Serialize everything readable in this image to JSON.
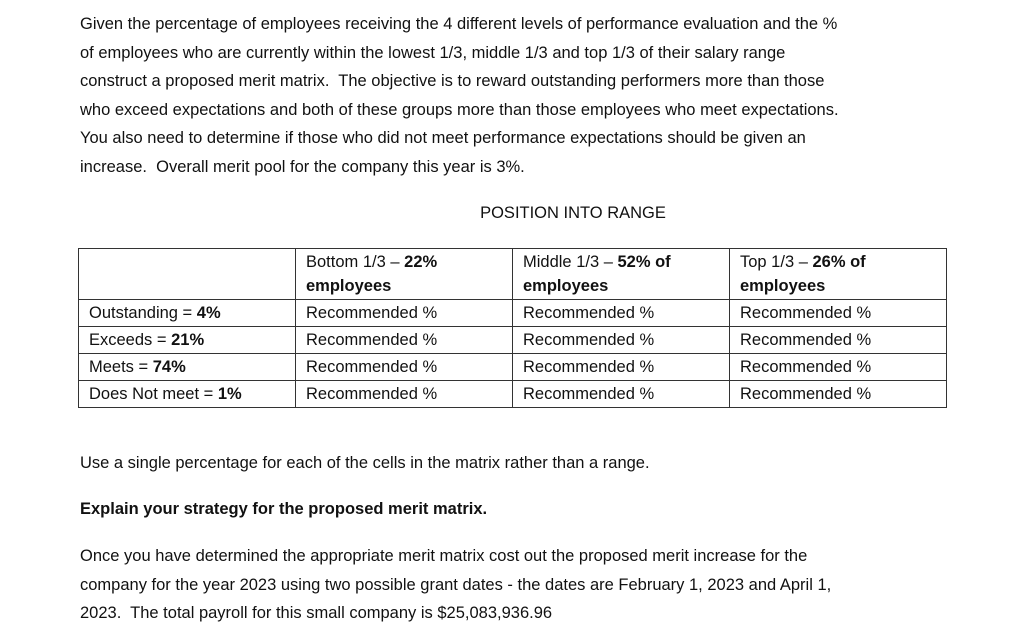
{
  "intro": {
    "lines": [
      "Given the percentage of employees receiving the 4 different levels of performance evaluation and the %",
      "of employees who are currently within the lowest 1/3, middle 1/3 and top 1/3 of their salary range",
      "construct a proposed merit matrix.  The objective is to reward outstanding performers more than those",
      "who exceed expectations and both of these groups more than those employees who meet expectations.",
      "You also need to determine if those who did not meet performance expectations should be given an",
      "increase.  Overall merit pool for the company this year is 3%."
    ]
  },
  "table_caption": "POSITION INTO RANGE",
  "table": {
    "column_headers": [
      {
        "text": "Bottom 1/3 – ",
        "bold": "22% employees"
      },
      {
        "text": "Middle 1/3 – ",
        "bold": "52% of employees"
      },
      {
        "text": "Top 1/3 – ",
        "bold": "26% of employees"
      }
    ],
    "rows": [
      {
        "label": {
          "text": "Outstanding = ",
          "bold": "4%"
        },
        "cells": [
          "Recommended %",
          "Recommended %",
          "Recommended %"
        ]
      },
      {
        "label": {
          "text": "Exceeds = ",
          "bold": "21%"
        },
        "cells": [
          "Recommended %",
          "Recommended %",
          "Recommended %"
        ]
      },
      {
        "label": {
          "text": "Meets = ",
          "bold": "74%"
        },
        "cells": [
          "Recommended %",
          "Recommended %",
          "Recommended %"
        ]
      },
      {
        "label": {
          "text": "Does Not meet = ",
          "bold": "1%"
        },
        "cells": [
          "Recommended %",
          "Recommended %",
          "Recommended %"
        ]
      }
    ]
  },
  "instruction": "Use a single percentage for each of the cells in the matrix rather than a range.",
  "question": "Explain your strategy for the proposed merit matrix.",
  "closing": {
    "lines": [
      "Once you have determined the appropriate merit matrix cost out the proposed merit increase for the",
      "company for the year 2023 using two possible grant dates - the dates are February 1, 2023 and April 1,",
      "2023.  The total payroll for this small company is $25,083,936.96"
    ]
  }
}
